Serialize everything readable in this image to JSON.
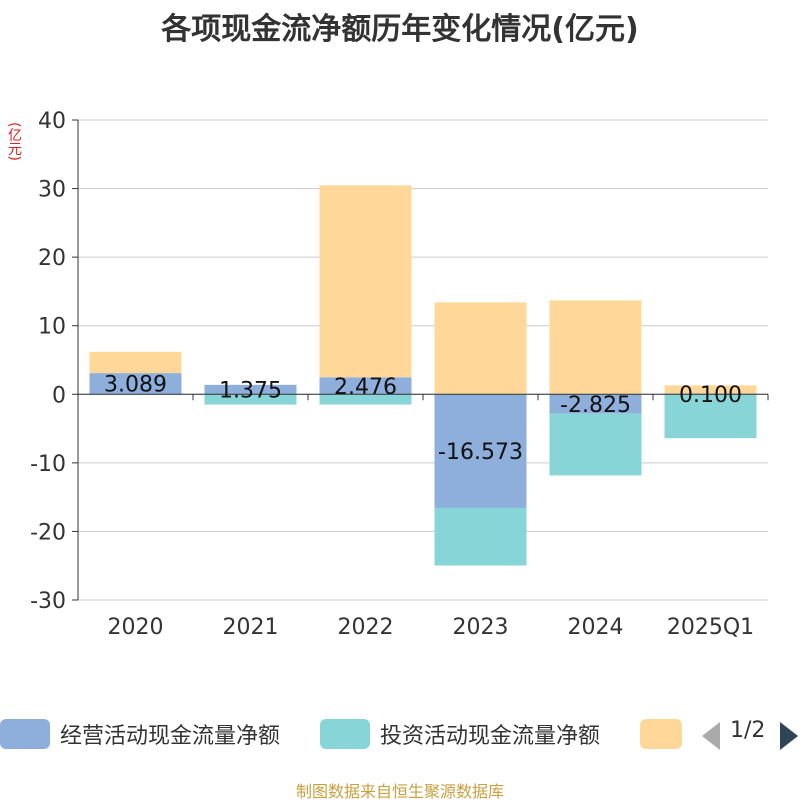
{
  "title": "各项现金流净额历年变化情况(亿元)",
  "unit_label": "(亿元)",
  "legend": {
    "items": [
      {
        "label": "经营活动现金流量净额",
        "color": "#8eaedc"
      },
      {
        "label": "投资活动现金流量净额",
        "color": "#88d5d8"
      },
      {
        "label": "",
        "color": "#ffd899"
      }
    ],
    "pager": "1/2"
  },
  "source": "制图数据来自恒生聚源数据库",
  "chart_data": {
    "type": "bar",
    "stacked": true,
    "categories": [
      "2020",
      "2021",
      "2022",
      "2023",
      "2024",
      "2025Q1"
    ],
    "ylim": [
      -30,
      40
    ],
    "yticks": [
      -30,
      -20,
      -10,
      0,
      10,
      20,
      30,
      40
    ],
    "grid": true,
    "series": [
      {
        "name": "经营活动现金流量净额",
        "color": "#8eaedc",
        "values": [
          3.089,
          1.375,
          2.476,
          -16.573,
          -2.825,
          0.1
        ],
        "labels": [
          "3.089",
          "1.375",
          "2.476",
          "-16.573",
          "-2.825",
          "0.100"
        ]
      },
      {
        "name": "投资活动现金流量净额",
        "color": "#88d5d8",
        "values": [
          0,
          -1.5,
          -1.5,
          -8.4,
          -9.0,
          -6.4
        ]
      },
      {
        "color": "#ffd899",
        "values": [
          3.1,
          0,
          28.0,
          13.4,
          13.7,
          1.2
        ]
      }
    ]
  }
}
